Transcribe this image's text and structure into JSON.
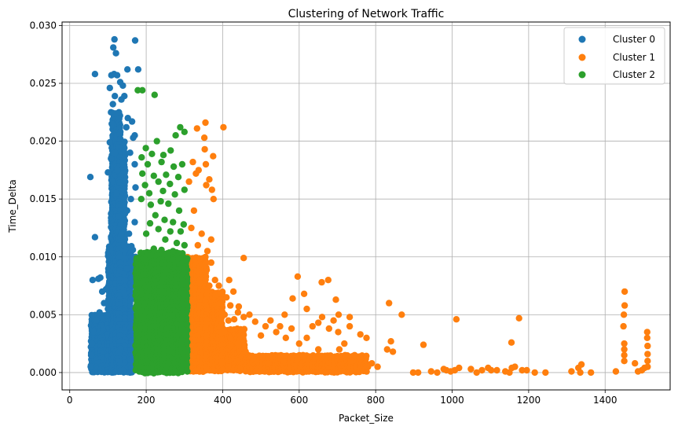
{
  "chart_data": {
    "type": "scatter",
    "title": "Clustering of Network Traffic",
    "xlabel": "Packet_Size",
    "ylabel": "Time_Delta",
    "xlim": [
      -20,
      1570
    ],
    "ylim": [
      -0.0015,
      0.0303
    ],
    "xticks": [
      "0",
      "200",
      "400",
      "600",
      "800",
      "1000",
      "1200",
      "1400"
    ],
    "xtick_values": [
      0,
      200,
      400,
      600,
      800,
      1000,
      1200,
      1400
    ],
    "yticks": [
      "0.000",
      "0.005",
      "0.010",
      "0.015",
      "0.020",
      "0.025",
      "0.030"
    ],
    "ytick_values": [
      0,
      0.005,
      0.01,
      0.015,
      0.02,
      0.025,
      0.03
    ],
    "grid": true,
    "legend_position": "top-right",
    "series": [
      {
        "name": "Cluster 0",
        "color": "#1f77b4",
        "points": [
          [
            54,
            0.0169
          ],
          [
            66,
            0.0258
          ],
          [
            66,
            0.0117
          ],
          [
            60,
            0.008
          ],
          [
            75,
            0.0081
          ],
          [
            80,
            0.0082
          ],
          [
            117,
            0.0288
          ],
          [
            114,
            0.0281
          ],
          [
            121,
            0.0276
          ],
          [
            171,
            0.0287
          ],
          [
            179,
            0.0262
          ],
          [
            151,
            0.0262
          ],
          [
            116,
            0.0258
          ],
          [
            124,
            0.0257
          ],
          [
            109,
            0.0257
          ],
          [
            132,
            0.0251
          ],
          [
            139,
            0.0248
          ],
          [
            105,
            0.0246
          ],
          [
            118,
            0.0239
          ],
          [
            143,
            0.0239
          ],
          [
            135,
            0.0236
          ],
          [
            113,
            0.0232
          ],
          [
            152,
            0.022
          ],
          [
            108,
            0.0225
          ],
          [
            120,
            0.0224
          ],
          [
            163,
            0.0217
          ],
          [
            170,
            0.0205
          ],
          [
            110,
            0.0215
          ],
          [
            148,
            0.0212
          ],
          [
            166,
            0.0203
          ],
          [
            105,
            0.0199
          ],
          [
            158,
            0.019
          ],
          [
            170,
            0.018
          ],
          [
            108,
            0.0185
          ],
          [
            140,
            0.018
          ],
          [
            100,
            0.0173
          ],
          [
            145,
            0.0165
          ],
          [
            172,
            0.016
          ],
          [
            160,
            0.015
          ],
          [
            150,
            0.014
          ],
          [
            170,
            0.013
          ],
          [
            155,
            0.012
          ],
          [
            165,
            0.0106
          ],
          [
            172,
            0.01
          ],
          [
            160,
            0.0095
          ],
          [
            150,
            0.009
          ],
          [
            95,
            0.0072
          ],
          [
            90,
            0.006
          ],
          [
            85,
            0.007
          ],
          [
            100,
            0.0055
          ],
          [
            78,
            0.0052
          ],
          [
            70,
            0.0045
          ],
          [
            62,
            0.0035
          ],
          [
            58,
            0.0025
          ],
          [
            56,
            0.0015
          ],
          [
            55,
            0.0005
          ],
          [
            170,
            0.0085
          ],
          [
            165,
            0.0075
          ],
          [
            130,
            0.01
          ],
          [
            128,
            0.0135
          ],
          [
            122,
            0.0155
          ],
          [
            118,
            0.019
          ],
          [
            112,
            0.0165
          ],
          [
            135,
            0.012
          ],
          [
            142,
            0.011
          ],
          [
            125,
            0.0175
          ]
        ],
        "bands": [
          {
            "x": [
              55,
              170
            ],
            "y": [
              0,
              0.005
            ]
          },
          {
            "x": [
              100,
              160
            ],
            "y": [
              0,
              0.011
            ]
          },
          {
            "x": [
              108,
              145
            ],
            "y": [
              0,
              0.02
            ]
          },
          {
            "x": [
              112,
              130
            ],
            "y": [
              0,
              0.0225
            ]
          }
        ]
      },
      {
        "name": "Cluster 1",
        "color": "#ff7f0e",
        "points": [
          [
            355,
            0.0216
          ],
          [
            402,
            0.0212
          ],
          [
            333,
            0.0211
          ],
          [
            352,
            0.0203
          ],
          [
            330,
            0.0172
          ],
          [
            353,
            0.0193
          ],
          [
            375,
            0.0187
          ],
          [
            322,
            0.0182
          ],
          [
            365,
            0.0167
          ],
          [
            357,
            0.0162
          ],
          [
            372,
            0.0158
          ],
          [
            312,
            0.0165
          ],
          [
            356,
            0.018
          ],
          [
            337,
            0.0175
          ],
          [
            376,
            0.015
          ],
          [
            455,
            0.0099
          ],
          [
            596,
            0.0083
          ],
          [
            676,
            0.008
          ],
          [
            659,
            0.0078
          ],
          [
            613,
            0.0068
          ],
          [
            583,
            0.0064
          ],
          [
            696,
            0.0063
          ],
          [
            835,
            0.006
          ],
          [
            428,
            0.007
          ],
          [
            390,
            0.0075
          ],
          [
            417,
            0.008
          ],
          [
            395,
            0.006
          ],
          [
            442,
            0.0057
          ],
          [
            562,
            0.005
          ],
          [
            620,
            0.0055
          ],
          [
            660,
            0.0048
          ],
          [
            703,
            0.005
          ],
          [
            732,
            0.0048
          ],
          [
            868,
            0.005
          ],
          [
            1011,
            0.0046
          ],
          [
            1175,
            0.0047
          ],
          [
            1451,
            0.007
          ],
          [
            1451,
            0.0058
          ],
          [
            1449,
            0.005
          ],
          [
            1448,
            0.004
          ],
          [
            1510,
            0.0035
          ],
          [
            1510,
            0.003
          ],
          [
            1155,
            0.0026
          ],
          [
            840,
            0.0027
          ],
          [
            925,
            0.0024
          ],
          [
            1450,
            0.0025
          ],
          [
            1450,
            0.002
          ],
          [
            1450,
            0.0015
          ],
          [
            1450,
            0.001
          ],
          [
            1511,
            0.0023
          ],
          [
            1511,
            0.0016
          ],
          [
            1511,
            0.001
          ],
          [
            1511,
            0.0005
          ],
          [
            1338,
            0.0007
          ],
          [
            1330,
            0.0004
          ],
          [
            1428,
            0.0001
          ],
          [
            1478,
            0.0008
          ],
          [
            1503,
            0.0004
          ],
          [
            1496,
            0.0002
          ],
          [
            1486,
            0.0001
          ],
          [
            1363,
            0.0
          ],
          [
            1335,
            0.0
          ],
          [
            1312,
            0.0001
          ],
          [
            1244,
            0.0
          ],
          [
            1216,
            0.0
          ],
          [
            1195,
            0.0002
          ],
          [
            1183,
            0.0002
          ],
          [
            1164,
            0.0005
          ],
          [
            1156,
            0.0004
          ],
          [
            1150,
            0.0
          ],
          [
            1139,
            0.0001
          ],
          [
            1117,
            0.0002
          ],
          [
            1102,
            0.0002
          ],
          [
            1094,
            0.0004
          ],
          [
            1078,
            0.0002
          ],
          [
            1064,
            0.0
          ],
          [
            1049,
            0.0003
          ],
          [
            1018,
            0.0004
          ],
          [
            1007,
            0.0002
          ],
          [
            996,
            0.0001
          ],
          [
            985,
            0.0002
          ],
          [
            978,
            0.0003
          ],
          [
            961,
            0.0
          ],
          [
            945,
            0.0001
          ],
          [
            911,
            0.0
          ],
          [
            898,
            0.0
          ],
          [
            845,
            0.0018
          ],
          [
            830,
            0.002
          ],
          [
            805,
            0.0005
          ],
          [
            790,
            0.0008
          ],
          [
            776,
            0.003
          ],
          [
            760,
            0.0033
          ],
          [
            745,
            0.0015
          ],
          [
            732,
            0.004
          ],
          [
            718,
            0.0025
          ],
          [
            702,
            0.0035
          ],
          [
            690,
            0.0045
          ],
          [
            678,
            0.0038
          ],
          [
            650,
            0.0043
          ],
          [
            635,
            0.004
          ],
          [
            620,
            0.003
          ],
          [
            600,
            0.0025
          ],
          [
            580,
            0.0038
          ],
          [
            565,
            0.003
          ],
          [
            550,
            0.004
          ],
          [
            540,
            0.0035
          ],
          [
            525,
            0.0045
          ],
          [
            512,
            0.004
          ],
          [
            500,
            0.0032
          ],
          [
            485,
            0.0044
          ],
          [
            470,
            0.005
          ],
          [
            455,
            0.0048
          ],
          [
            440,
            0.0052
          ],
          [
            430,
            0.0046
          ],
          [
            420,
            0.0058
          ],
          [
            410,
            0.0065
          ],
          [
            395,
            0.0068
          ],
          [
            380,
            0.008
          ],
          [
            370,
            0.0095
          ],
          [
            360,
            0.0105
          ],
          [
            345,
            0.012
          ],
          [
            335,
            0.011
          ],
          [
            325,
            0.014
          ],
          [
            318,
            0.0125
          ],
          [
            370,
            0.0115
          ],
          [
            365,
            0.0075
          ],
          [
            405,
            0.005
          ],
          [
            415,
            0.0045
          ],
          [
            735,
            0.001
          ],
          [
            760,
            0.0012
          ],
          [
            780,
            0.0005
          ],
          [
            720,
            0.0015
          ],
          [
            705,
            0.002
          ],
          [
            650,
            0.002
          ],
          [
            610,
            0.0015
          ],
          [
            595,
            0.0012
          ],
          [
            560,
            0.001
          ],
          [
            520,
            0.0008
          ],
          [
            480,
            0.0012
          ],
          [
            460,
            0.0018
          ],
          [
            440,
            0.0025
          ],
          [
            420,
            0.003
          ],
          [
            405,
            0.0035
          ],
          [
            395,
            0.004
          ]
        ],
        "bands": [
          {
            "x": [
              305,
              460
            ],
            "y": [
              0,
              0.0038
            ]
          },
          {
            "x": [
              305,
              400
            ],
            "y": [
              0,
              0.007
            ]
          },
          {
            "x": [
              305,
              360
            ],
            "y": [
              0,
              0.01
            ]
          },
          {
            "x": [
              460,
              780
            ],
            "y": [
              0,
              0.0015
            ]
          }
        ]
      },
      {
        "name": "Cluster 2",
        "color": "#2ca02c",
        "points": [
          [
            178,
            0.0244
          ],
          [
            190,
            0.0244
          ],
          [
            222,
            0.024
          ],
          [
            289,
            0.0212
          ],
          [
            300,
            0.0208
          ],
          [
            277,
            0.0205
          ],
          [
            228,
            0.02
          ],
          [
            199,
            0.0194
          ],
          [
            215,
            0.0189
          ],
          [
            245,
            0.0188
          ],
          [
            264,
            0.0192
          ],
          [
            188,
            0.0186
          ],
          [
            204,
            0.018
          ],
          [
            240,
            0.0182
          ],
          [
            272,
            0.0178
          ],
          [
            294,
            0.018
          ],
          [
            190,
            0.0172
          ],
          [
            220,
            0.017
          ],
          [
            252,
            0.0171
          ],
          [
            284,
            0.0169
          ],
          [
            197,
            0.0162
          ],
          [
            232,
            0.0165
          ],
          [
            262,
            0.0163
          ],
          [
            208,
            0.0155
          ],
          [
            244,
            0.0157
          ],
          [
            275,
            0.0154
          ],
          [
            300,
            0.0158
          ],
          [
            187,
            0.015
          ],
          [
            212,
            0.0145
          ],
          [
            238,
            0.0148
          ],
          [
            258,
            0.0146
          ],
          [
            286,
            0.014
          ],
          [
            224,
            0.0136
          ],
          [
            248,
            0.0132
          ],
          [
            270,
            0.013
          ],
          [
            298,
            0.0128
          ],
          [
            210,
            0.0129
          ],
          [
            232,
            0.0124
          ],
          [
            263,
            0.0122
          ],
          [
            290,
            0.0122
          ],
          [
            200,
            0.012
          ],
          [
            250,
            0.0115
          ],
          [
            280,
            0.0112
          ],
          [
            300,
            0.011
          ],
          [
            220,
            0.0107
          ],
          [
            240,
            0.0106
          ],
          [
            270,
            0.0105
          ],
          [
            295,
            0.0103
          ]
        ],
        "bands": [
          {
            "x": [
              172,
              308
            ],
            "y": [
              0,
              0.01
            ]
          },
          {
            "x": [
              185,
              300
            ],
            "y": [
              0,
              0.0104
            ]
          }
        ]
      }
    ]
  }
}
